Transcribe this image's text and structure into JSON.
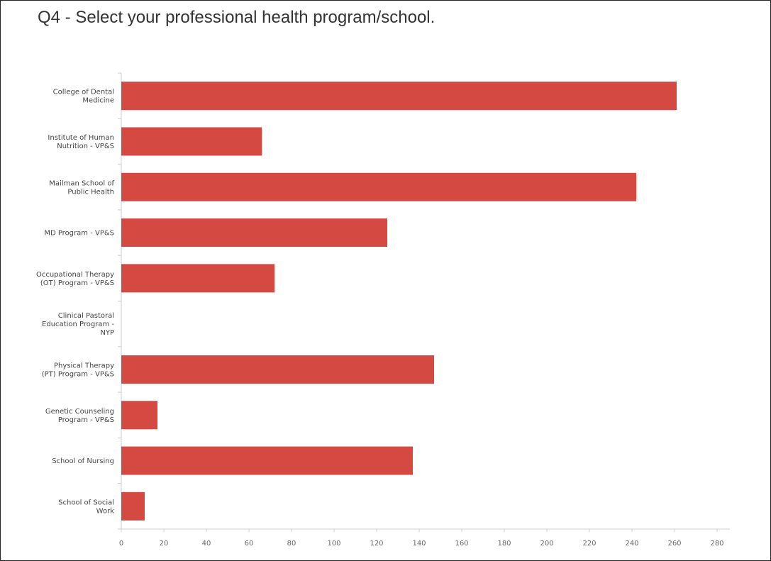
{
  "page": {
    "title": "Q4 - Select your professional health program/school."
  },
  "chart_data": {
    "type": "bar",
    "orientation": "horizontal",
    "title": "",
    "xlabel": "",
    "ylabel": "",
    "categories": [
      [
        "College of Dental",
        "Medicine"
      ],
      [
        "Institute of Human",
        "Nutrition - VP&S"
      ],
      [
        "Mailman School of",
        "Public Health"
      ],
      [
        "MD Program - VP&S"
      ],
      [
        "Occupational Therapy",
        "(OT) Program - VP&S"
      ],
      [
        "Clinical Pastoral",
        "Education Program -",
        "NYP"
      ],
      [
        "Physical Therapy",
        "(PT) Program - VP&S"
      ],
      [
        "Genetic Counseling",
        "Program - VP&S"
      ],
      [
        "School of Nursing"
      ],
      [
        "School of Social",
        "Work"
      ]
    ],
    "values": [
      261,
      66,
      242,
      125,
      72,
      0,
      147,
      17,
      137,
      11
    ],
    "xlim": [
      0,
      287
    ],
    "xticks": [
      0,
      20,
      40,
      60,
      80,
      100,
      120,
      140,
      160,
      180,
      200,
      220,
      240,
      260,
      280
    ],
    "bar_color": "#d44a42",
    "grid": false
  }
}
